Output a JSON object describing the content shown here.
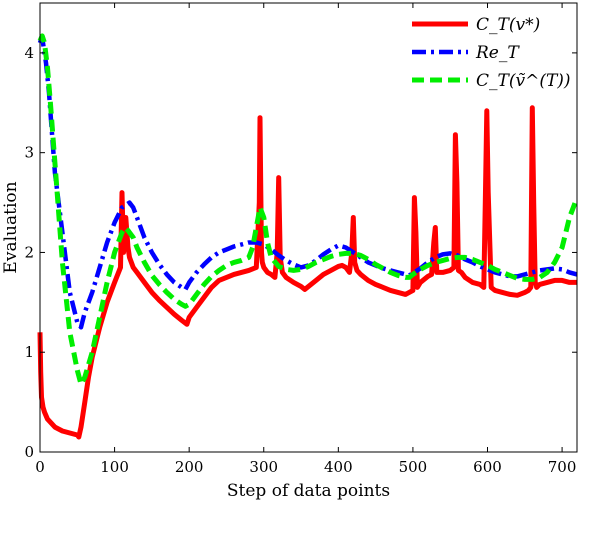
{
  "chart_data": {
    "type": "line",
    "title": "",
    "xlabel": "Step of data points",
    "ylabel": "Evaluation",
    "xlim": [
      0,
      720
    ],
    "ylim": [
      0,
      4.5
    ],
    "xticks": [
      0,
      100,
      200,
      300,
      400,
      500,
      600,
      700
    ],
    "yticks": [
      0,
      1,
      2,
      3,
      4
    ],
    "grid": false,
    "legend_position": "top-right",
    "series": [
      {
        "name": "C_T(v*)",
        "color": "#ff0000",
        "style": "solid",
        "x": [
          0,
          1,
          2,
          4,
          6,
          10,
          20,
          30,
          40,
          50,
          52,
          55,
          60,
          65,
          70,
          80,
          90,
          100,
          108,
          110,
          112,
          115,
          118,
          120,
          125,
          130,
          140,
          150,
          160,
          170,
          180,
          190,
          197,
          200,
          210,
          220,
          230,
          240,
          250,
          260,
          270,
          280,
          290,
          294,
          295,
          296,
          297,
          298,
          300,
          305,
          310,
          315,
          318,
          320,
          322,
          325,
          330,
          340,
          350,
          355,
          360,
          370,
          380,
          390,
          400,
          405,
          410,
          415,
          418,
          420,
          422,
          425,
          430,
          440,
          450,
          460,
          470,
          480,
          490,
          495,
          500,
          502,
          504,
          506,
          510,
          520,
          525,
          528,
          530,
          532,
          540,
          550,
          555,
          557,
          559,
          561,
          565,
          570,
          580,
          590,
          595,
          597,
          599,
          601,
          605,
          610,
          620,
          630,
          640,
          650,
          655,
          658,
          660,
          662,
          664,
          666,
          670,
          680,
          690,
          700,
          710,
          720
        ],
        "values": [
          1.2,
          0.8,
          0.55,
          0.45,
          0.4,
          0.33,
          0.25,
          0.21,
          0.19,
          0.17,
          0.15,
          0.25,
          0.5,
          0.75,
          0.95,
          1.25,
          1.5,
          1.7,
          1.85,
          2.6,
          2.0,
          2.35,
          2.05,
          1.95,
          1.85,
          1.8,
          1.7,
          1.6,
          1.52,
          1.45,
          1.38,
          1.32,
          1.28,
          1.35,
          1.45,
          1.55,
          1.65,
          1.72,
          1.75,
          1.78,
          1.8,
          1.82,
          1.85,
          2.5,
          3.35,
          2.6,
          2.0,
          1.9,
          1.85,
          1.8,
          1.78,
          1.75,
          2.0,
          2.75,
          1.95,
          1.8,
          1.75,
          1.7,
          1.66,
          1.63,
          1.66,
          1.72,
          1.78,
          1.82,
          1.86,
          1.87,
          1.85,
          1.8,
          2.0,
          2.35,
          1.9,
          1.82,
          1.78,
          1.72,
          1.68,
          1.65,
          1.62,
          1.6,
          1.58,
          1.6,
          1.62,
          2.55,
          2.2,
          1.65,
          1.7,
          1.76,
          1.78,
          2.1,
          2.25,
          1.8,
          1.8,
          1.82,
          1.85,
          3.18,
          2.7,
          1.82,
          1.8,
          1.75,
          1.7,
          1.68,
          1.65,
          2.5,
          3.42,
          2.6,
          1.65,
          1.62,
          1.6,
          1.58,
          1.57,
          1.6,
          1.62,
          1.65,
          3.45,
          2.5,
          1.7,
          1.65,
          1.68,
          1.7,
          1.72,
          1.72,
          1.7,
          1.7
        ]
      },
      {
        "name": "Re_T",
        "color": "#0000ff",
        "style": "dash-dot",
        "x": [
          0,
          2,
          4,
          8,
          12,
          15,
          20,
          30,
          40,
          50,
          55,
          60,
          70,
          80,
          90,
          100,
          110,
          120,
          125,
          130,
          140,
          150,
          160,
          170,
          180,
          190,
          195,
          200,
          210,
          220,
          230,
          240,
          250,
          260,
          270,
          280,
          290,
          300,
          310,
          320,
          330,
          340,
          350,
          360,
          370,
          380,
          390,
          400,
          410,
          420,
          430,
          440,
          450,
          460,
          470,
          480,
          490,
          495,
          500,
          510,
          520,
          530,
          540,
          550,
          560,
          570,
          580,
          590,
          600,
          610,
          620,
          630,
          640,
          650,
          660,
          670,
          680,
          690,
          700,
          710,
          720
        ],
        "values": [
          4.1,
          4.15,
          4.1,
          3.9,
          3.6,
          3.3,
          2.8,
          2.2,
          1.6,
          1.3,
          1.25,
          1.4,
          1.6,
          1.85,
          2.1,
          2.3,
          2.45,
          2.5,
          2.45,
          2.35,
          2.15,
          2.0,
          1.88,
          1.78,
          1.7,
          1.65,
          1.63,
          1.7,
          1.8,
          1.88,
          1.95,
          2.0,
          2.03,
          2.06,
          2.08,
          2.1,
          2.1,
          2.08,
          2.03,
          1.97,
          1.92,
          1.88,
          1.85,
          1.87,
          1.92,
          1.98,
          2.03,
          2.07,
          2.05,
          2.0,
          1.95,
          1.9,
          1.87,
          1.84,
          1.82,
          1.8,
          1.78,
          1.77,
          1.79,
          1.84,
          1.9,
          1.95,
          1.98,
          1.99,
          1.97,
          1.93,
          1.9,
          1.86,
          1.83,
          1.8,
          1.78,
          1.76,
          1.76,
          1.78,
          1.8,
          1.82,
          1.83,
          1.84,
          1.83,
          1.8,
          1.78
        ]
      },
      {
        "name": "C_T(ṽ^(T))",
        "color": "#00ee00",
        "style": "dashed",
        "x": [
          0,
          3,
          6,
          10,
          14,
          18,
          22,
          30,
          40,
          50,
          55,
          60,
          70,
          80,
          90,
          100,
          110,
          114,
          118,
          125,
          130,
          140,
          150,
          160,
          170,
          180,
          190,
          195,
          200,
          210,
          220,
          230,
          240,
          250,
          260,
          270,
          280,
          285,
          290,
          295,
          300,
          305,
          310,
          320,
          330,
          340,
          350,
          360,
          370,
          380,
          390,
          400,
          410,
          420,
          430,
          440,
          450,
          460,
          470,
          480,
          490,
          495,
          500,
          510,
          520,
          530,
          540,
          550,
          560,
          570,
          580,
          590,
          600,
          610,
          620,
          630,
          640,
          650,
          660,
          670,
          680,
          690,
          700,
          705,
          710,
          715,
          720
        ],
        "values": [
          4.12,
          4.17,
          4.1,
          3.85,
          3.5,
          3.1,
          2.7,
          1.9,
          1.2,
          0.82,
          0.68,
          0.75,
          1.0,
          1.35,
          1.7,
          2.0,
          2.2,
          2.25,
          2.22,
          2.15,
          2.05,
          1.9,
          1.77,
          1.68,
          1.6,
          1.53,
          1.48,
          1.46,
          1.48,
          1.58,
          1.68,
          1.76,
          1.82,
          1.87,
          1.9,
          1.92,
          1.95,
          2.05,
          2.25,
          2.45,
          2.35,
          2.1,
          1.95,
          1.86,
          1.83,
          1.82,
          1.83,
          1.86,
          1.9,
          1.93,
          1.96,
          1.98,
          1.99,
          1.99,
          1.97,
          1.93,
          1.88,
          1.84,
          1.8,
          1.77,
          1.75,
          1.75,
          1.78,
          1.83,
          1.87,
          1.9,
          1.92,
          1.94,
          1.95,
          1.95,
          1.93,
          1.9,
          1.87,
          1.83,
          1.8,
          1.77,
          1.74,
          1.73,
          1.73,
          1.75,
          1.8,
          1.9,
          2.05,
          2.2,
          2.35,
          2.45,
          2.55
        ]
      }
    ]
  }
}
